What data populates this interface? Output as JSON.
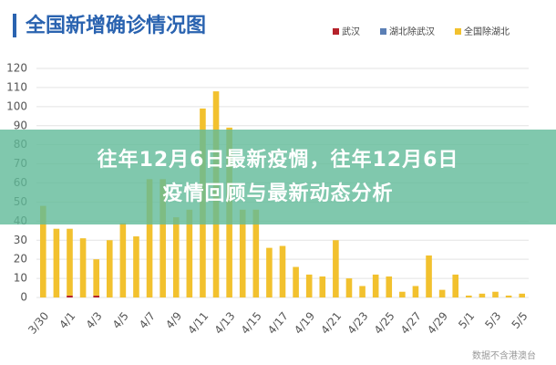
{
  "chart_data": {
    "type": "bar",
    "stacked": true,
    "title": "全国新增确诊情况图",
    "source": "数据不含港澳台",
    "categories": [
      "3/30",
      null,
      "4/1",
      null,
      "4/3",
      null,
      "4/5",
      null,
      "4/7",
      null,
      "4/9",
      null,
      "4/11",
      null,
      "4/13",
      null,
      "4/15",
      null,
      "4/17",
      null,
      "4/19",
      null,
      "4/21",
      null,
      "4/23",
      null,
      "4/25",
      null,
      "4/27",
      null,
      "4/29",
      null,
      "5/1",
      null,
      "5/3",
      null,
      "5/5"
    ],
    "series": [
      {
        "name": "武汉",
        "color": "#b5222a",
        "values": [
          0,
          0,
          1,
          0,
          1,
          0,
          0,
          0,
          0,
          0,
          0,
          0,
          0,
          0,
          0,
          0,
          0,
          0,
          0,
          0,
          0,
          0,
          0,
          0,
          0,
          0,
          0,
          0,
          0,
          0,
          0,
          0,
          0,
          0,
          0,
          0,
          0
        ]
      },
      {
        "name": "湖北除武汉",
        "color": "#5b7fb5",
        "values": [
          0,
          0,
          0,
          0,
          0,
          0,
          0,
          0,
          0,
          0,
          0,
          0,
          0,
          0,
          0,
          0,
          0,
          0,
          0,
          0,
          0,
          0,
          0,
          0,
          0,
          0,
          0,
          0,
          0,
          0,
          0,
          0,
          0,
          0,
          0,
          0,
          0
        ]
      },
      {
        "name": "全国除湖北",
        "color": "#f2c12e",
        "values": [
          48,
          36,
          35,
          31,
          19,
          30,
          39,
          32,
          62,
          62,
          42,
          46,
          99,
          108,
          89,
          46,
          46,
          26,
          27,
          16,
          12,
          11,
          30,
          10,
          6,
          12,
          11,
          3,
          6,
          22,
          4,
          12,
          1,
          2,
          3,
          1,
          2
        ]
      }
    ],
    "ylim": [
      0,
      120
    ],
    "yticks": [
      0,
      10,
      20,
      30,
      40,
      50,
      60,
      70,
      80,
      90,
      100,
      110,
      120
    ],
    "grid": true,
    "legend": "top-right"
  },
  "overlay": {
    "lines": [
      "往年12月6日最新疫惆，往年12月6日",
      "疫情回顾与最新动态分析"
    ]
  }
}
